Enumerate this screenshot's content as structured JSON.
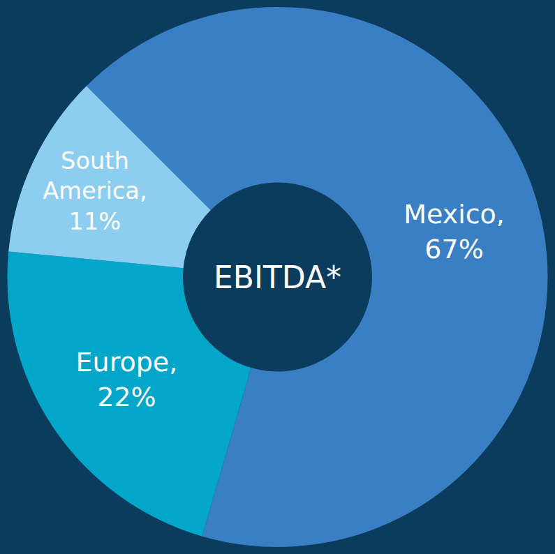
{
  "chart_data": {
    "type": "pie",
    "title": "EBITDA*",
    "categories": [
      "Mexico",
      "Europe",
      "South America"
    ],
    "values": [
      67,
      22,
      11
    ],
    "value_labels": [
      "Mexico, 67%",
      "Europe, 22%",
      "South America, 11%"
    ],
    "colors": [
      "#3a7fc4",
      "#02a6c9",
      "#8dcdf0"
    ],
    "data_labels": true
  }
}
